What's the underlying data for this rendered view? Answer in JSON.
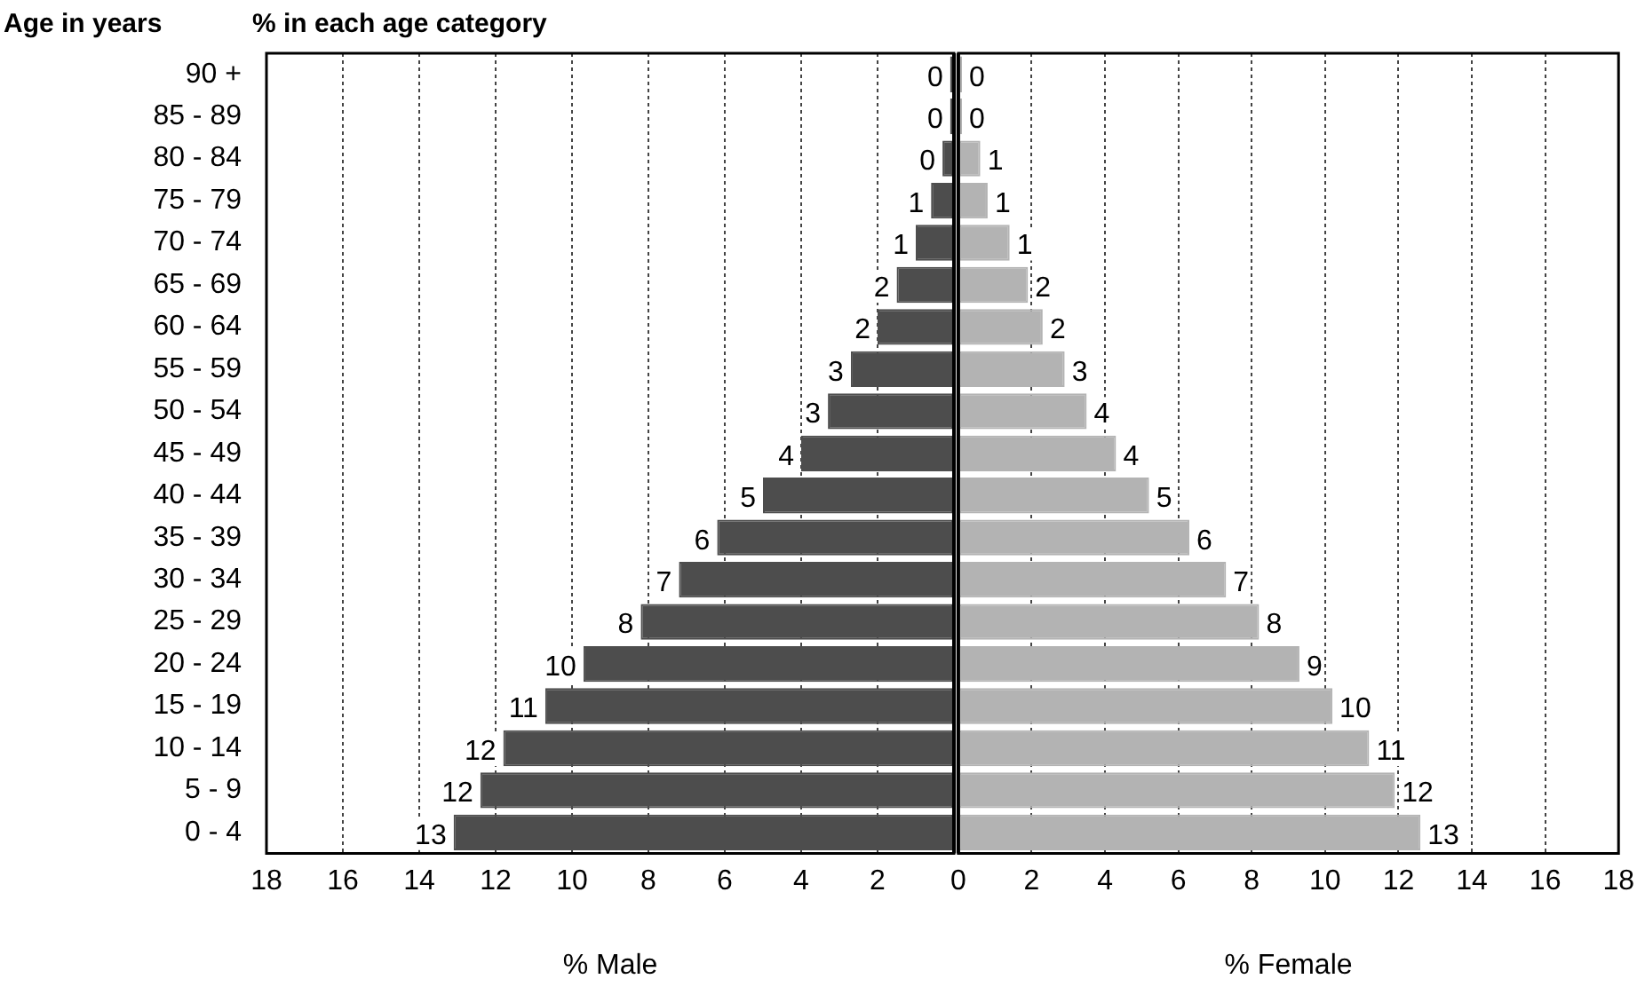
{
  "chart_data": [
    {
      "type": "bar",
      "orientation": "horizontal",
      "title": "% in each age category",
      "ylabel": "Age in years",
      "xlabel": "% Male",
      "categories": [
        "90 +",
        "85 - 89",
        "80 - 84",
        "75 - 79",
        "70 - 74",
        "65 - 69",
        "60 - 64",
        "55 - 59",
        "50 - 54",
        "45 - 49",
        "40 - 44",
        "35 - 39",
        "30 - 34",
        "25 - 29",
        "20 - 24",
        "15 - 19",
        "10 - 14",
        "5 - 9",
        "0 - 4"
      ],
      "series": [
        {
          "color": "#4d4d4d",
          "values": [
            0.1,
            0.1,
            0.3,
            0.6,
            1.0,
            1.5,
            2.0,
            2.7,
            3.3,
            4.0,
            5.0,
            6.2,
            7.2,
            8.2,
            9.7,
            10.7,
            11.8,
            12.4,
            13.1
          ],
          "value_labels": [
            "0",
            "0",
            "0",
            "1",
            "1",
            "2",
            "2",
            "3",
            "3",
            "4",
            "5",
            "6",
            "7",
            "8",
            "10",
            "11",
            "12",
            "12",
            "13"
          ]
        }
      ],
      "xlim": [
        18,
        0
      ],
      "xticks": [
        18,
        16,
        14,
        12,
        10,
        8,
        6,
        4,
        2,
        {
          "value": 0,
          "label": null
        }
      ],
      "grid": "x",
      "legend": false
    },
    {
      "type": "bar",
      "orientation": "horizontal",
      "xlabel": "% Female",
      "tick_labels": "x",
      "categories": [
        null,
        null,
        null,
        null,
        null,
        null,
        null,
        null,
        null,
        null,
        null,
        null,
        null,
        null,
        null,
        null,
        null,
        null,
        null
      ],
      "series": [
        {
          "color": "#b3b3b3",
          "values": [
            0.1,
            0.1,
            0.6,
            0.8,
            1.4,
            1.9,
            2.3,
            2.9,
            3.5,
            4.3,
            5.2,
            6.3,
            7.3,
            8.2,
            9.3,
            10.2,
            11.2,
            11.9,
            12.6
          ],
          "value_labels": [
            "0",
            "0",
            "1",
            "1",
            "1",
            "2",
            "2",
            "3",
            "4",
            "4",
            "5",
            "6",
            "7",
            "8",
            "9",
            "10",
            "11",
            "12",
            "13"
          ]
        }
      ],
      "xlim": [
        0,
        18
      ],
      "xticks": [
        0,
        2,
        4,
        6,
        8,
        10,
        12,
        14,
        16,
        18
      ],
      "grid": "x",
      "legend": false
    }
  ]
}
